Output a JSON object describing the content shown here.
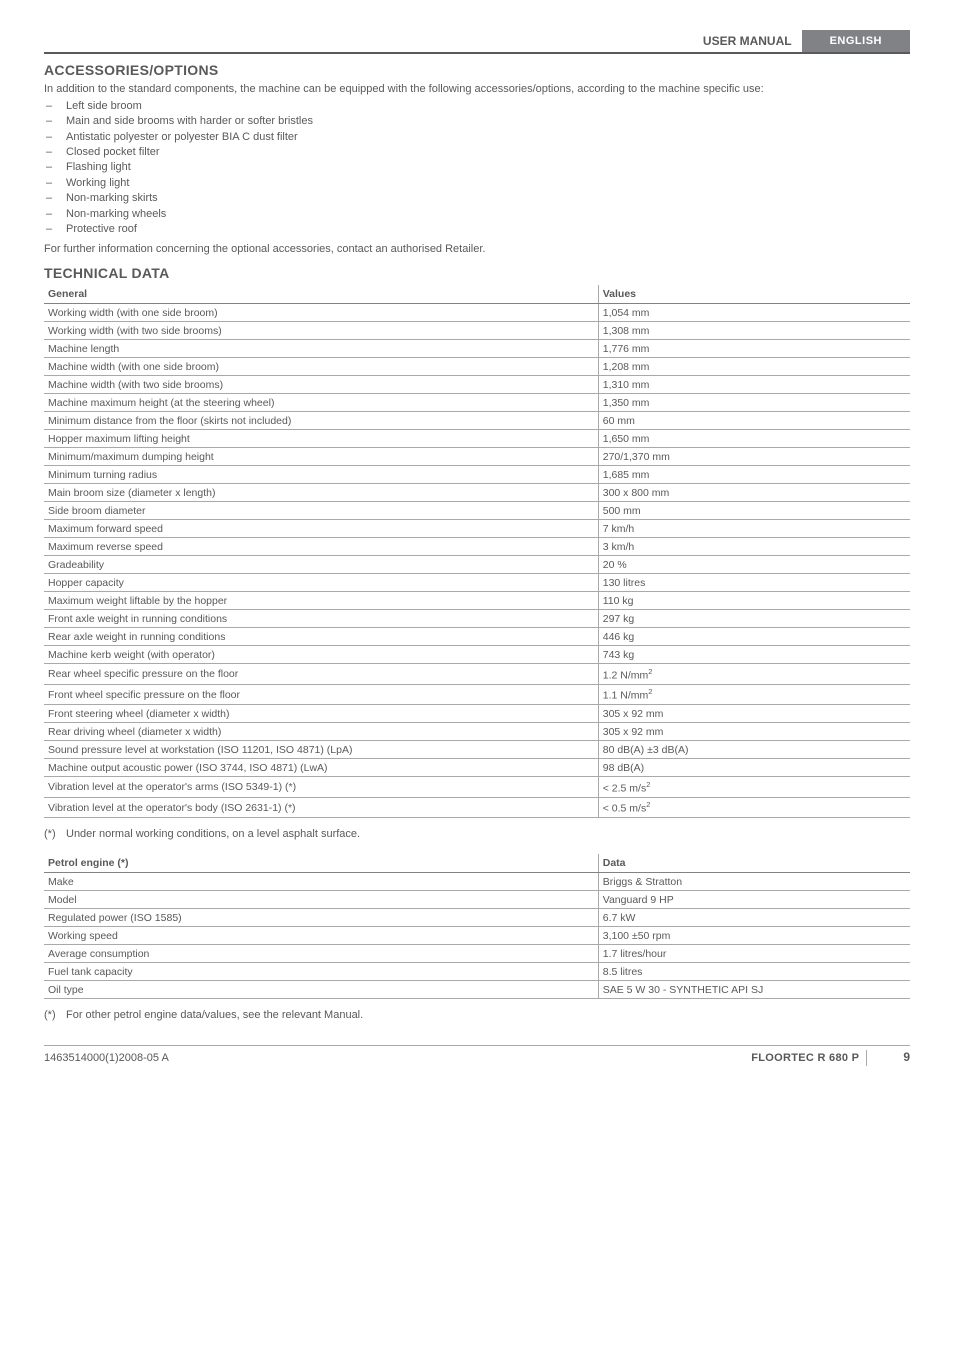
{
  "header": {
    "user_manual": "USER MANUAL",
    "language": "ENGLISH"
  },
  "accessories": {
    "title": "ACCESSORIES/OPTIONS",
    "intro": "In addition to the standard components, the machine can be equipped with the following accessories/options, according to the machine specific use:",
    "items": [
      "Left side broom",
      "Main and side brooms with harder or softer bristles",
      "Antistatic polyester or polyester BIA C dust filter",
      "Closed pocket filter",
      "Flashing light",
      "Working light",
      "Non-marking skirts",
      "Non-marking wheels",
      "Protective roof"
    ],
    "after": "For further information concerning the optional accessories, contact an authorised Retailer."
  },
  "tech": {
    "title": "TECHNICAL DATA",
    "general": {
      "col1": "General",
      "col2": "Values",
      "rows": [
        [
          "Working width (with one side broom)",
          "1,054 mm"
        ],
        [
          "Working width (with two side brooms)",
          "1,308 mm"
        ],
        [
          "Machine length",
          "1,776 mm"
        ],
        [
          "Machine width (with one side broom)",
          "1,208 mm"
        ],
        [
          "Machine width (with two side brooms)",
          "1,310 mm"
        ],
        [
          "Machine maximum height (at the steering wheel)",
          "1,350 mm"
        ],
        [
          "Minimum distance from the floor (skirts not included)",
          "60 mm"
        ],
        [
          "Hopper maximum lifting height",
          "1,650 mm"
        ],
        [
          "Minimum/maximum dumping height",
          "270/1,370 mm"
        ],
        [
          "Minimum turning radius",
          "1,685 mm"
        ],
        [
          "Main broom size (diameter x length)",
          "300 x 800 mm"
        ],
        [
          "Side broom diameter",
          "500 mm"
        ],
        [
          "Maximum forward speed",
          "7 km/h"
        ],
        [
          "Maximum reverse speed",
          "3 km/h"
        ],
        [
          "Gradeability",
          "20 %"
        ],
        [
          "Hopper capacity",
          "130 litres"
        ],
        [
          "Maximum weight liftable by the hopper",
          "110 kg"
        ],
        [
          "Front axle weight in running conditions",
          "297 kg"
        ],
        [
          "Rear axle weight in running conditions",
          "446 kg"
        ],
        [
          "Machine kerb weight (with operator)",
          "743 kg"
        ],
        [
          "Rear wheel specific pressure on the floor",
          "1.2 N/mm²"
        ],
        [
          "Front wheel specific pressure on the floor",
          "1.1 N/mm²"
        ],
        [
          "Front steering wheel (diameter x width)",
          "305 x 92 mm"
        ],
        [
          "Rear driving wheel (diameter x width)",
          "305 x 92 mm"
        ],
        [
          "Sound pressure level at workstation (ISO 11201, ISO 4871) (LpA)",
          "80 dB(A) ±3 dB(A)"
        ],
        [
          "Machine output acoustic power (ISO 3744, ISO 4871) (LwA)",
          "98 dB(A)"
        ],
        [
          "Vibration level at the operator's arms (ISO 5349-1) (*)",
          "< 2.5 m/s²"
        ],
        [
          "Vibration level at the operator's body (ISO 2631-1) (*)",
          "< 0.5 m/s²"
        ]
      ],
      "note": "Under normal working conditions, on a level asphalt surface."
    },
    "engine": {
      "col1": "Petrol engine (*)",
      "col2": "Data",
      "rows": [
        [
          "Make",
          "Briggs & Stratton"
        ],
        [
          "Model",
          "Vanguard 9 HP"
        ],
        [
          "Regulated power (ISO 1585)",
          "6.7 kW"
        ],
        [
          "Working speed",
          "3,100 ±50 rpm"
        ],
        [
          "Average consumption",
          "1.7 litres/hour"
        ],
        [
          "Fuel tank capacity",
          "8.5 litres"
        ],
        [
          "Oil type",
          "SAE 5 W 30 - SYNTHETIC API SJ"
        ]
      ],
      "note": "For other petrol engine data/values, see the relevant Manual."
    }
  },
  "footer": {
    "left": "1463514000(1)2008-05 A",
    "model": "FLOORTEC R 680 P",
    "page": "9"
  }
}
